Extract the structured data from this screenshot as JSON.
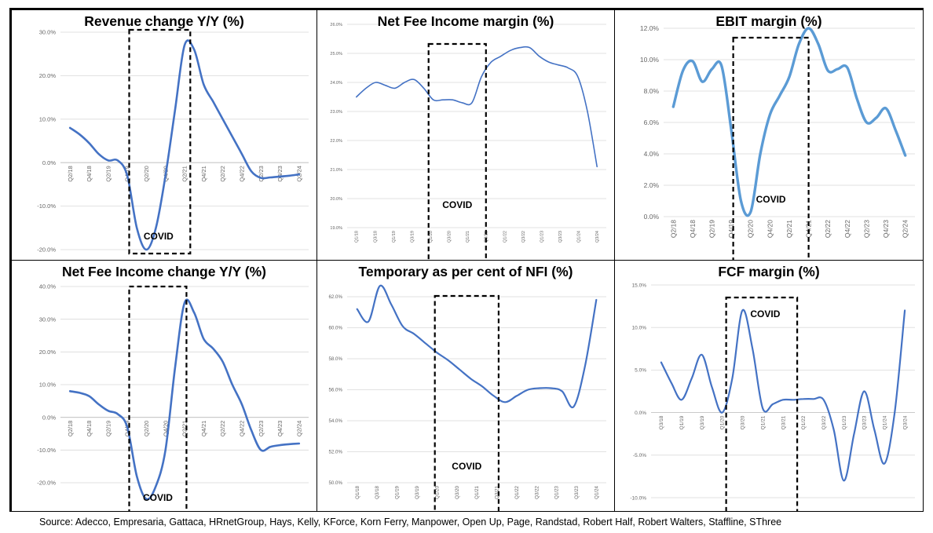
{
  "chart_data": [
    {
      "type": "line",
      "title": "Revenue change Y/Y (%)",
      "tick_labels": [
        "Q2/18",
        "Q4/18",
        "Q2/19",
        "Q4/19",
        "Q2/20",
        "Q4/20",
        "Q2/21",
        "Q4/21",
        "Q2/22",
        "Q4/22",
        "Q2/23",
        "Q4/23",
        "Q2/24"
      ],
      "y_ticks": [
        "30.0%",
        "20.0%",
        "10.0%",
        "0.0%",
        "-10.0%",
        "-20.0%"
      ],
      "ylim": [
        -20,
        30
      ],
      "series": [
        {
          "name": "Revenue change Y/Y",
          "values": [
            8,
            6.5,
            4.5,
            2,
            0.5,
            0.5,
            -3,
            -15,
            -20,
            -15,
            -3,
            12,
            27,
            26,
            18,
            14,
            10,
            6,
            2,
            -2,
            -3.5,
            -3.4,
            -3.2,
            -3,
            -2.7
          ]
        }
      ],
      "covid_box": [
        3.6,
        6.8
      ],
      "annotation": "COVID",
      "colors": {
        "line": "#4472C4",
        "grid": "#d9d9d9"
      }
    },
    {
      "type": "line",
      "title": "Net Fee Income  margin (%)",
      "tick_labels": [
        "Q1/18",
        "Q3/18",
        "Q1/19",
        "Q3/19",
        "Q1/20",
        "Q3/20",
        "Q1/21",
        "Q3/21",
        "Q1/22",
        "Q3/22",
        "Q1/23",
        "Q3/23",
        "Q1/24",
        "Q3/24"
      ],
      "y_ticks": [
        "26.0%",
        "25.0%",
        "24.0%",
        "23.0%",
        "22.0%",
        "21.0%",
        "20.0%",
        "19.0%"
      ],
      "ylim": [
        19,
        26
      ],
      "series": [
        {
          "name": "Net Fee Income margin",
          "values": [
            23.5,
            23.8,
            24,
            23.9,
            23.8,
            24,
            24.1,
            23.8,
            23.4,
            23.4,
            23.4,
            23.3,
            23.3,
            24.2,
            24.7,
            24.9,
            25.1,
            25.2,
            25.2,
            24.9,
            24.7,
            24.6,
            24.5,
            24.2,
            23,
            21.1
          ]
        }
      ],
      "covid_box": [
        4.4,
        7.5
      ],
      "annotation": "COVID",
      "colors": {
        "line": "#4472C4",
        "grid": "#d9d9d9"
      }
    },
    {
      "type": "line",
      "title": "EBIT margin (%)",
      "tick_labels": [
        "Q2/18",
        "Q4/18",
        "Q2/19",
        "Q4/19",
        "Q2/20",
        "Q4/20",
        "Q2/21",
        "Q4/21",
        "Q2/22",
        "Q4/22",
        "Q2/23",
        "Q4/23",
        "Q2/24"
      ],
      "y_ticks": [
        "12.0%",
        "10.0%",
        "8.0%",
        "6.0%",
        "4.0%",
        "2.0%",
        "0.0%"
      ],
      "ylim": [
        0,
        12
      ],
      "series": [
        {
          "name": "EBIT margin",
          "values": [
            7,
            9.3,
            9.9,
            8.6,
            9.4,
            9.6,
            5.5,
            1,
            0.3,
            4,
            6.5,
            7.7,
            8.9,
            11,
            12,
            11,
            9.3,
            9.4,
            9.5,
            7.5,
            6,
            6.3,
            6.9,
            5.5,
            3.9
          ]
        }
      ],
      "covid_box": [
        3.6,
        7.5
      ],
      "annotation": "COVID",
      "colors": {
        "line": "#5B9BD5",
        "grid": "#d9d9d9"
      }
    },
    {
      "type": "line",
      "title": "Net Fee Income change Y/Y (%)",
      "tick_labels": [
        "Q2/18",
        "Q4/18",
        "Q2/19",
        "Q4/19",
        "Q2/20",
        "Q4/20",
        "Q2/21",
        "Q4/21",
        "Q2/22",
        "Q4/22",
        "Q2/23",
        "Q4/23",
        "Q2/24"
      ],
      "y_ticks": [
        "40.0%",
        "30.0%",
        "20.0%",
        "10.0%",
        "0.0%",
        "-10.0%",
        "-20.0%"
      ],
      "ylim": [
        -20,
        40
      ],
      "series": [
        {
          "name": "Net Fee Income change Y/Y",
          "values": [
            8,
            7.5,
            6.5,
            4,
            2,
            1,
            -3,
            -18,
            -25,
            -21,
            -10,
            15,
            35,
            32,
            24,
            21,
            17,
            10,
            4,
            -4,
            -10,
            -9,
            -8.5,
            -8.2,
            -8
          ]
        }
      ],
      "covid_box": [
        3.6,
        6.6
      ],
      "annotation": "COVID",
      "colors": {
        "line": "#4472C4",
        "grid": "#d9d9d9"
      }
    },
    {
      "type": "line",
      "title": "Temporary as per cent of NFI (%)",
      "tick_labels": [
        "Q1/18",
        "Q3/18",
        "Q1/19",
        "Q3/19",
        "Q1/20",
        "Q3/20",
        "Q1/21",
        "Q3/21",
        "Q1/22",
        "Q3/22",
        "Q1/23",
        "Q3/23",
        "Q1/24"
      ],
      "y_ticks": [
        "62.0%",
        "60.0%",
        "58.0%",
        "56.0%",
        "54.0%",
        "52.0%",
        "50.0%"
      ],
      "ylim": [
        50,
        62
      ],
      "series": [
        {
          "name": "Temporary as per cent of NFI",
          "values": [
            61.2,
            60.4,
            62.7,
            61.5,
            60.1,
            59.6,
            59,
            58.4,
            57.9,
            57.3,
            56.7,
            56.2,
            55.6,
            55.2,
            55.6,
            56,
            56.1,
            56.1,
            55.9,
            54.9,
            57.5,
            61.8
          ]
        }
      ],
      "covid_box": [
        4.4,
        7.6
      ],
      "annotation": "COVID",
      "colors": {
        "line": "#4472C4",
        "grid": "#d9d9d9"
      }
    },
    {
      "type": "line",
      "title": "FCF margin (%)",
      "tick_labels": [
        "Q3/18",
        "Q1/19",
        "Q3/19",
        "Q1/20",
        "Q3/20",
        "Q1/21",
        "Q3/21",
        "Q1/22",
        "Q3/22",
        "Q1/23",
        "Q3/23",
        "Q1/24",
        "Q3/24"
      ],
      "y_ticks": [
        "15.0%",
        "10.0%",
        "5.0%",
        "0.0%",
        "-5.0%",
        "-10.0%"
      ],
      "ylim": [
        -10,
        15
      ],
      "series": [
        {
          "name": "FCF margin",
          "values": [
            5.9,
            3.5,
            1.5,
            4,
            6.8,
            3,
            0,
            4,
            12,
            7.5,
            0.5,
            1,
            1.5,
            1.5,
            1.6,
            1.6,
            1.5,
            -2,
            -8,
            -2.5,
            2.5,
            -2,
            -6,
            0,
            12
          ]
        }
      ],
      "covid_box": [
        3.7,
        7.2
      ],
      "annotation": "COVID",
      "colors": {
        "line": "#4472C4",
        "grid": "#d9d9d9"
      }
    }
  ],
  "source": "Source: Adecco, Empresaria, Gattaca, HRnetGroup, Hays, Kelly,  KForce, Korn Ferry, Manpower, Open Up, Page, Randstad, Robert Half, Robert Walters, Staffline, SThree"
}
